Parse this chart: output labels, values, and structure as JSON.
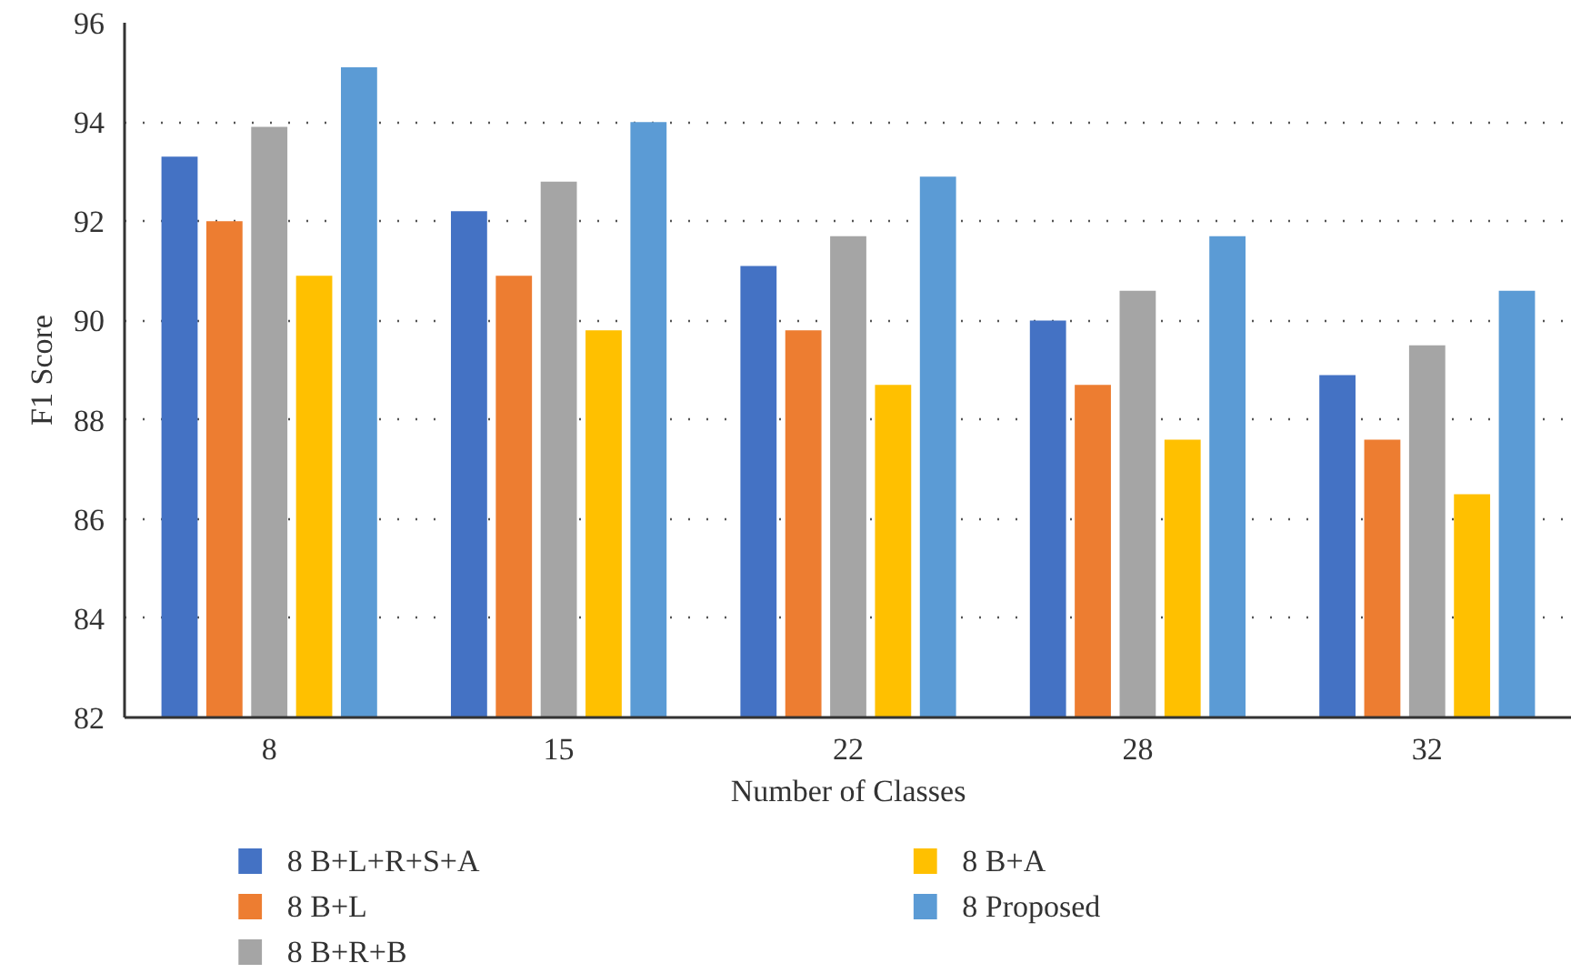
{
  "chart_data": {
    "type": "bar",
    "xlabel": "Number of Classes",
    "ylabel": "F1 Score",
    "categories": [
      "8",
      "15",
      "22",
      "28",
      "32"
    ],
    "series": [
      {
        "name": "8 B+L+R+S+A",
        "color": "#4472c4",
        "values": [
          93.3,
          92.2,
          91.1,
          90.0,
          88.9
        ]
      },
      {
        "name": "8 B+L",
        "color": "#ed7d31",
        "values": [
          92.0,
          90.9,
          89.8,
          88.7,
          87.6
        ]
      },
      {
        "name": "8 B+R+B",
        "color": "#a5a5a5",
        "values": [
          93.9,
          92.8,
          91.7,
          90.6,
          89.5
        ]
      },
      {
        "name": "8 B+A",
        "color": "#ffc000",
        "values": [
          90.9,
          89.8,
          88.7,
          87.6,
          86.5
        ]
      },
      {
        "name": "8 Proposed",
        "color": "#5b9bd5",
        "values": [
          95.1,
          94.0,
          92.9,
          91.7,
          90.6
        ]
      }
    ],
    "ylim": [
      82,
      96
    ],
    "yticks": [
      82,
      84,
      86,
      88,
      90,
      92,
      94,
      96
    ],
    "grid": "y",
    "legend": "bottom"
  }
}
